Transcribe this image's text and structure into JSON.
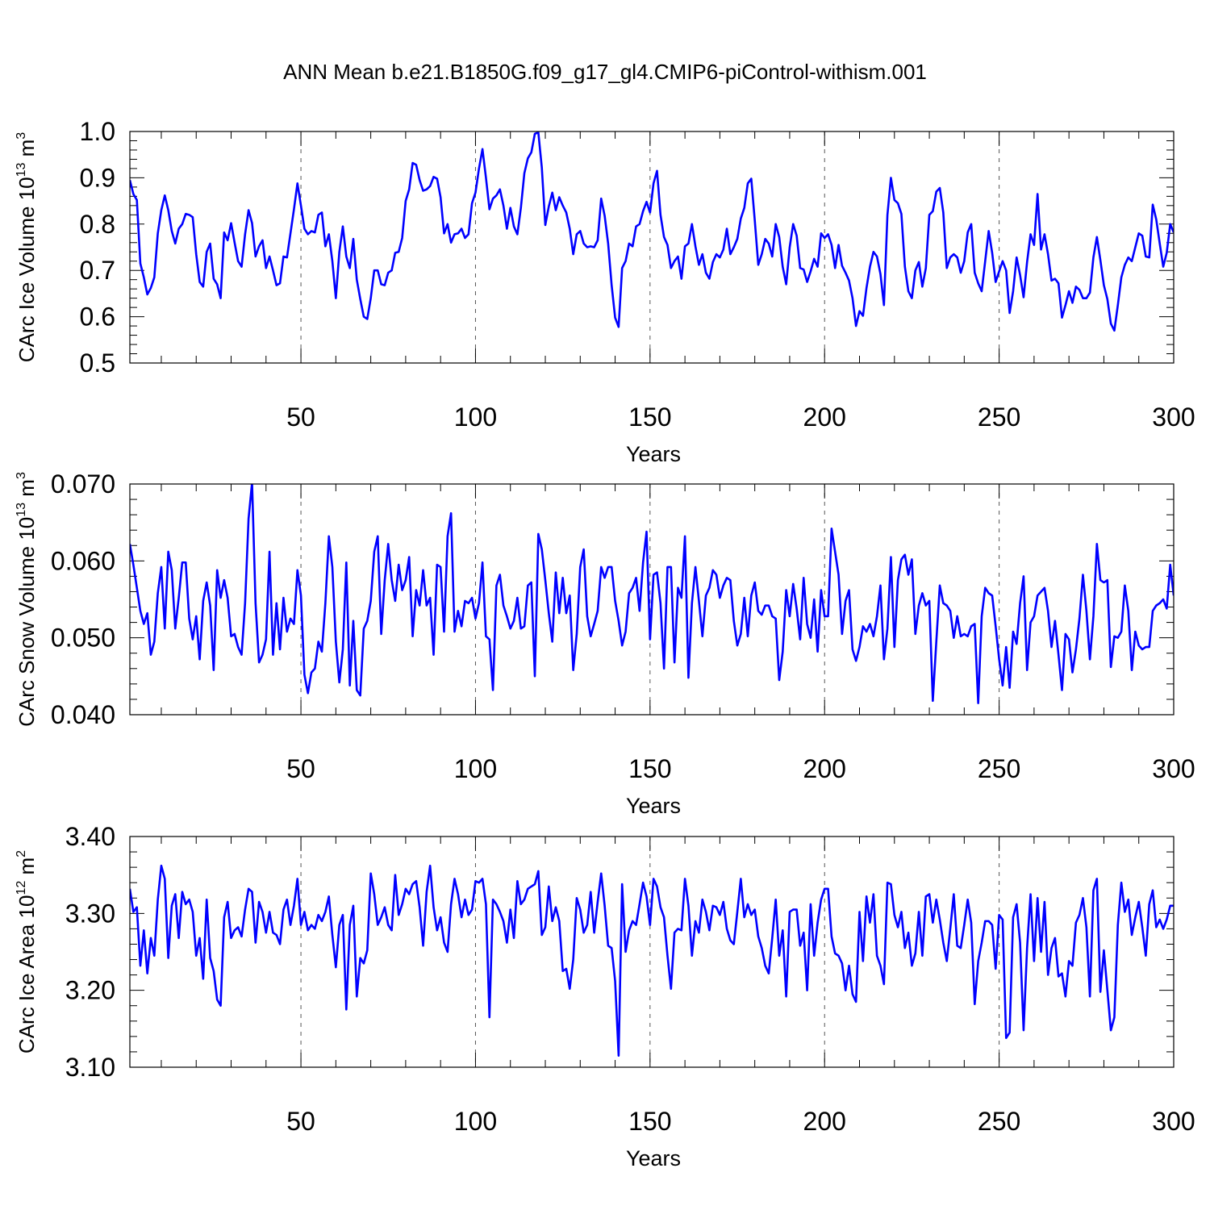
{
  "title": "ANN Mean b.e21.B1850G.f09_g17_gl4.CMIP6-piControl-withism.001",
  "chart_data": [
    {
      "type": "line",
      "ylabel": "CArc Ice Volume 10",
      "ylabel_exp": "13",
      "ylabel_unit": " m",
      "ylabel_unit_exp": "3",
      "xlabel": "Years",
      "xlim": [
        1,
        300
      ],
      "ylim": [
        0.5,
        1.0
      ],
      "xticks": [
        50,
        100,
        150,
        200,
        250,
        300
      ],
      "yticks": [
        0.5,
        0.6,
        0.7,
        0.8,
        0.9,
        1.0
      ],
      "ytick_labels": [
        "0.5",
        "0.6",
        "0.7",
        "0.8",
        "0.9",
        "1.0"
      ],
      "line_color": "#0000ff",
      "grid": "dashed vertical lines at x ticks",
      "series": [
        {
          "values": [
            0.895,
            0.865,
            0.852,
            0.715,
            0.685,
            0.648,
            0.662,
            0.685,
            0.78,
            0.83,
            0.862,
            0.83,
            0.785,
            0.758,
            0.79,
            0.8,
            0.822,
            0.82,
            0.815,
            0.735,
            0.675,
            0.665,
            0.74,
            0.758,
            0.682,
            0.67,
            0.64,
            0.782,
            0.765,
            0.802,
            0.76,
            0.72,
            0.708,
            0.778,
            0.83,
            0.802,
            0.73,
            0.752,
            0.765,
            0.705,
            0.73,
            0.7,
            0.668,
            0.672,
            0.73,
            0.728,
            0.78,
            0.832,
            0.888,
            0.84,
            0.79,
            0.778,
            0.785,
            0.782,
            0.82,
            0.825,
            0.752,
            0.778,
            0.72,
            0.64,
            0.74,
            0.795,
            0.73,
            0.705,
            0.768,
            0.68,
            0.638,
            0.6,
            0.595,
            0.64,
            0.7,
            0.7,
            0.67,
            0.668,
            0.695,
            0.7,
            0.738,
            0.74,
            0.77,
            0.85,
            0.875,
            0.932,
            0.928,
            0.895,
            0.872,
            0.875,
            0.882,
            0.902,
            0.898,
            0.858,
            0.78,
            0.8,
            0.76,
            0.778,
            0.78,
            0.79,
            0.77,
            0.778,
            0.845,
            0.868,
            0.92,
            0.962,
            0.9,
            0.832,
            0.855,
            0.862,
            0.875,
            0.84,
            0.79,
            0.835,
            0.795,
            0.778,
            0.835,
            0.91,
            0.942,
            0.955,
            0.995,
            0.998,
            0.922,
            0.798,
            0.838,
            0.868,
            0.83,
            0.858,
            0.84,
            0.825,
            0.79,
            0.735,
            0.778,
            0.785,
            0.758,
            0.75,
            0.752,
            0.75,
            0.765,
            0.855,
            0.818,
            0.758,
            0.668,
            0.598,
            0.578,
            0.705,
            0.72,
            0.758,
            0.752,
            0.795,
            0.8,
            0.828,
            0.848,
            0.825,
            0.888,
            0.915,
            0.82,
            0.772,
            0.755,
            0.705,
            0.72,
            0.73,
            0.682,
            0.752,
            0.758,
            0.8,
            0.752,
            0.712,
            0.735,
            0.695,
            0.682,
            0.718,
            0.735,
            0.728,
            0.745,
            0.79,
            0.735,
            0.75,
            0.768,
            0.812,
            0.835,
            0.888,
            0.898,
            0.808,
            0.712,
            0.735,
            0.768,
            0.758,
            0.73,
            0.8,
            0.772,
            0.708,
            0.67,
            0.75,
            0.8,
            0.775,
            0.705,
            0.702,
            0.675,
            0.698,
            0.725,
            0.708,
            0.78,
            0.77,
            0.778,
            0.755,
            0.705,
            0.755,
            0.71,
            0.695,
            0.678,
            0.64,
            0.58,
            0.612,
            0.602,
            0.662,
            0.708,
            0.74,
            0.73,
            0.692,
            0.625,
            0.82,
            0.9,
            0.852,
            0.845,
            0.822,
            0.708,
            0.655,
            0.64,
            0.7,
            0.718,
            0.665,
            0.705,
            0.82,
            0.828,
            0.87,
            0.878,
            0.825,
            0.705,
            0.728,
            0.735,
            0.728,
            0.695,
            0.72,
            0.782,
            0.8,
            0.695,
            0.672,
            0.655,
            0.72,
            0.785,
            0.738,
            0.675,
            0.698,
            0.72,
            0.7,
            0.608,
            0.655,
            0.728,
            0.69,
            0.642,
            0.718,
            0.778,
            0.755,
            0.865,
            0.745,
            0.778,
            0.735,
            0.678,
            0.682,
            0.672,
            0.598,
            0.625,
            0.655,
            0.63,
            0.665,
            0.658,
            0.64,
            0.64,
            0.652,
            0.728,
            0.772,
            0.722,
            0.668,
            0.638,
            0.585,
            0.57,
            0.625,
            0.685,
            0.712,
            0.728,
            0.72,
            0.75,
            0.78,
            0.775,
            0.73,
            0.728,
            0.842,
            0.81,
            0.758,
            0.708,
            0.738,
            0.8,
            0.782
          ]
        }
      ]
    },
    {
      "type": "line",
      "ylabel": "CArc Snow Volume 10",
      "ylabel_exp": "13",
      "ylabel_unit": " m",
      "ylabel_unit_exp": "3",
      "xlabel": "Years",
      "xlim": [
        1,
        300
      ],
      "ylim": [
        0.04,
        0.07
      ],
      "xticks": [
        50,
        100,
        150,
        200,
        250,
        300
      ],
      "yticks": [
        0.04,
        0.05,
        0.06,
        0.07
      ],
      "ytick_labels": [
        "0.040",
        "0.050",
        "0.060",
        "0.070"
      ],
      "line_color": "#0000ff",
      "grid": "dashed vertical lines at x ticks",
      "series": [
        {
          "values": [
            0.0622,
            0.0595,
            0.0565,
            0.0535,
            0.0518,
            0.0532,
            0.0478,
            0.0495,
            0.0558,
            0.0592,
            0.0512,
            0.0612,
            0.0588,
            0.0512,
            0.0552,
            0.0598,
            0.0598,
            0.0525,
            0.0498,
            0.0528,
            0.0472,
            0.0548,
            0.0572,
            0.0542,
            0.0458,
            0.0588,
            0.0552,
            0.0575,
            0.0552,
            0.0502,
            0.0505,
            0.0488,
            0.0478,
            0.0545,
            0.0655,
            0.0702,
            0.0545,
            0.0468,
            0.0478,
            0.0498,
            0.0612,
            0.0478,
            0.0545,
            0.0485,
            0.0552,
            0.0508,
            0.0525,
            0.0518,
            0.0588,
            0.0555,
            0.0452,
            0.0428,
            0.0455,
            0.046,
            0.0495,
            0.0482,
            0.0545,
            0.0632,
            0.0592,
            0.0495,
            0.0442,
            0.0485,
            0.0598,
            0.0438,
            0.0522,
            0.0432,
            0.0425,
            0.0512,
            0.0522,
            0.0548,
            0.0612,
            0.0632,
            0.0505,
            0.0575,
            0.0622,
            0.0575,
            0.0548,
            0.0595,
            0.0562,
            0.0575,
            0.0605,
            0.0502,
            0.0562,
            0.0542,
            0.0588,
            0.0542,
            0.0552,
            0.0478,
            0.0595,
            0.0592,
            0.0508,
            0.0632,
            0.0662,
            0.0508,
            0.0535,
            0.0515,
            0.0548,
            0.0545,
            0.0552,
            0.0525,
            0.0545,
            0.0598,
            0.0502,
            0.0498,
            0.0432,
            0.0568,
            0.0582,
            0.0542,
            0.0528,
            0.0512,
            0.0522,
            0.0552,
            0.0512,
            0.0515,
            0.0568,
            0.0572,
            0.045,
            0.0635,
            0.0615,
            0.0575,
            0.0532,
            0.0495,
            0.0585,
            0.0532,
            0.0578,
            0.0532,
            0.0555,
            0.0458,
            0.0505,
            0.0592,
            0.0615,
            0.0528,
            0.0502,
            0.0518,
            0.0535,
            0.0592,
            0.0578,
            0.0592,
            0.0592,
            0.0548,
            0.0522,
            0.049,
            0.0508,
            0.0558,
            0.0565,
            0.0578,
            0.0535,
            0.0598,
            0.0638,
            0.0498,
            0.0582,
            0.0585,
            0.0545,
            0.046,
            0.0592,
            0.0592,
            0.0468,
            0.0565,
            0.0552,
            0.0632,
            0.0448,
            0.0545,
            0.0592,
            0.0548,
            0.0502,
            0.0555,
            0.0565,
            0.0588,
            0.0582,
            0.0552,
            0.0568,
            0.0578,
            0.0575,
            0.0522,
            0.049,
            0.0505,
            0.0552,
            0.0502,
            0.0555,
            0.0572,
            0.0535,
            0.053,
            0.0542,
            0.0542,
            0.0528,
            0.0525,
            0.0445,
            0.0482,
            0.0562,
            0.0528,
            0.057,
            0.0538,
            0.0498,
            0.0578,
            0.0518,
            0.05,
            0.055,
            0.0482,
            0.0562,
            0.0528,
            0.0528,
            0.0642,
            0.0612,
            0.0582,
            0.0505,
            0.0548,
            0.0562,
            0.0485,
            0.047,
            0.0488,
            0.0515,
            0.0508,
            0.0518,
            0.0502,
            0.0528,
            0.0568,
            0.0472,
            0.0512,
            0.0605,
            0.0488,
            0.0575,
            0.0602,
            0.0608,
            0.0582,
            0.0602,
            0.0505,
            0.0542,
            0.0558,
            0.0542,
            0.0548,
            0.0418,
            0.0495,
            0.0568,
            0.0545,
            0.0542,
            0.0535,
            0.05,
            0.0528,
            0.0502,
            0.0505,
            0.0502,
            0.0515,
            0.0518,
            0.0415,
            0.0528,
            0.0565,
            0.0558,
            0.0555,
            0.0515,
            0.0472,
            0.0438,
            0.0488,
            0.0435,
            0.0508,
            0.0492,
            0.0545,
            0.058,
            0.0458,
            0.052,
            0.0528,
            0.0555,
            0.056,
            0.0565,
            0.0535,
            0.0488,
            0.0522,
            0.0478,
            0.0432,
            0.0505,
            0.0498,
            0.0455,
            0.0485,
            0.0525,
            0.0582,
            0.0535,
            0.0472,
            0.0528,
            0.0622,
            0.0575,
            0.0572,
            0.0575,
            0.0462,
            0.0502,
            0.05,
            0.0508,
            0.0568,
            0.0535,
            0.0458,
            0.0508,
            0.049,
            0.0485,
            0.0488,
            0.0488,
            0.0535,
            0.0542,
            0.0545,
            0.055,
            0.0538,
            0.0595,
            0.0555
          ]
        }
      ]
    },
    {
      "type": "line",
      "ylabel": "CArc Ice Area 10",
      "ylabel_exp": "12",
      "ylabel_unit": " m",
      "ylabel_unit_exp": "2",
      "xlabel": "Years",
      "xlim": [
        1,
        300
      ],
      "ylim": [
        3.1,
        3.4
      ],
      "xticks": [
        50,
        100,
        150,
        200,
        250,
        300
      ],
      "yticks": [
        3.1,
        3.2,
        3.3,
        3.4
      ],
      "ytick_labels": [
        "3.10",
        "3.20",
        "3.30",
        "3.40"
      ],
      "line_color": "#0000ff",
      "grid": "dashed vertical lines at x ticks",
      "series": [
        {
          "values": [
            3.332,
            3.302,
            3.308,
            3.232,
            3.278,
            3.222,
            3.268,
            3.245,
            3.318,
            3.362,
            3.345,
            3.242,
            3.31,
            3.325,
            3.268,
            3.328,
            3.312,
            3.318,
            3.302,
            3.245,
            3.268,
            3.215,
            3.318,
            3.242,
            3.225,
            3.188,
            3.18,
            3.295,
            3.315,
            3.268,
            3.278,
            3.282,
            3.27,
            3.305,
            3.332,
            3.328,
            3.262,
            3.315,
            3.302,
            3.275,
            3.302,
            3.275,
            3.272,
            3.26,
            3.305,
            3.318,
            3.285,
            3.31,
            3.345,
            3.285,
            3.302,
            3.278,
            3.285,
            3.28,
            3.298,
            3.29,
            3.302,
            3.322,
            3.272,
            3.23,
            3.285,
            3.298,
            3.175,
            3.285,
            3.31,
            3.192,
            3.242,
            3.235,
            3.252,
            3.352,
            3.325,
            3.285,
            3.295,
            3.308,
            3.285,
            3.278,
            3.35,
            3.298,
            3.312,
            3.332,
            3.325,
            3.338,
            3.342,
            3.308,
            3.258,
            3.328,
            3.362,
            3.308,
            3.278,
            3.295,
            3.262,
            3.25,
            3.312,
            3.345,
            3.325,
            3.295,
            3.318,
            3.298,
            3.305,
            3.342,
            3.34,
            3.345,
            3.312,
            3.165,
            3.318,
            3.312,
            3.302,
            3.29,
            3.262,
            3.305,
            3.268,
            3.342,
            3.312,
            3.318,
            3.332,
            3.335,
            3.338,
            3.355,
            3.272,
            3.282,
            3.335,
            3.29,
            3.308,
            3.29,
            3.225,
            3.228,
            3.202,
            3.24,
            3.32,
            3.305,
            3.275,
            3.285,
            3.328,
            3.275,
            3.315,
            3.352,
            3.31,
            3.258,
            3.255,
            3.212,
            3.115,
            3.338,
            3.25,
            3.278,
            3.29,
            3.285,
            3.312,
            3.34,
            3.322,
            3.285,
            3.345,
            3.335,
            3.308,
            3.295,
            3.245,
            3.202,
            3.275,
            3.28,
            3.278,
            3.345,
            3.31,
            3.245,
            3.29,
            3.275,
            3.318,
            3.302,
            3.278,
            3.31,
            3.308,
            3.298,
            3.315,
            3.28,
            3.265,
            3.26,
            3.302,
            3.345,
            3.295,
            3.312,
            3.298,
            3.305,
            3.27,
            3.255,
            3.232,
            3.222,
            3.268,
            3.318,
            3.245,
            3.278,
            3.192,
            3.302,
            3.305,
            3.305,
            3.258,
            3.275,
            3.2,
            3.312,
            3.245,
            3.288,
            3.318,
            3.332,
            3.332,
            3.27,
            3.248,
            3.245,
            3.235,
            3.2,
            3.232,
            3.195,
            3.185,
            3.302,
            3.238,
            3.322,
            3.288,
            3.325,
            3.245,
            3.232,
            3.208,
            3.34,
            3.338,
            3.298,
            3.282,
            3.302,
            3.255,
            3.275,
            3.232,
            3.248,
            3.302,
            3.245,
            3.322,
            3.325,
            3.288,
            3.318,
            3.292,
            3.262,
            3.238,
            3.28,
            3.325,
            3.258,
            3.255,
            3.285,
            3.318,
            3.288,
            3.182,
            3.238,
            3.262,
            3.29,
            3.29,
            3.285,
            3.228,
            3.298,
            3.292,
            3.138,
            3.145,
            3.295,
            3.312,
            3.262,
            3.148,
            3.255,
            3.325,
            3.238,
            3.32,
            3.25,
            3.315,
            3.22,
            3.255,
            3.268,
            3.218,
            3.222,
            3.192,
            3.238,
            3.232,
            3.288,
            3.298,
            3.32,
            3.282,
            3.192,
            3.33,
            3.345,
            3.198,
            3.252,
            3.2,
            3.148,
            3.165,
            3.285,
            3.34,
            3.302,
            3.318,
            3.272,
            3.295,
            3.315,
            3.282,
            3.245,
            3.312,
            3.33,
            3.282,
            3.292,
            3.28,
            3.292,
            3.31,
            3.31
          ]
        }
      ]
    }
  ]
}
